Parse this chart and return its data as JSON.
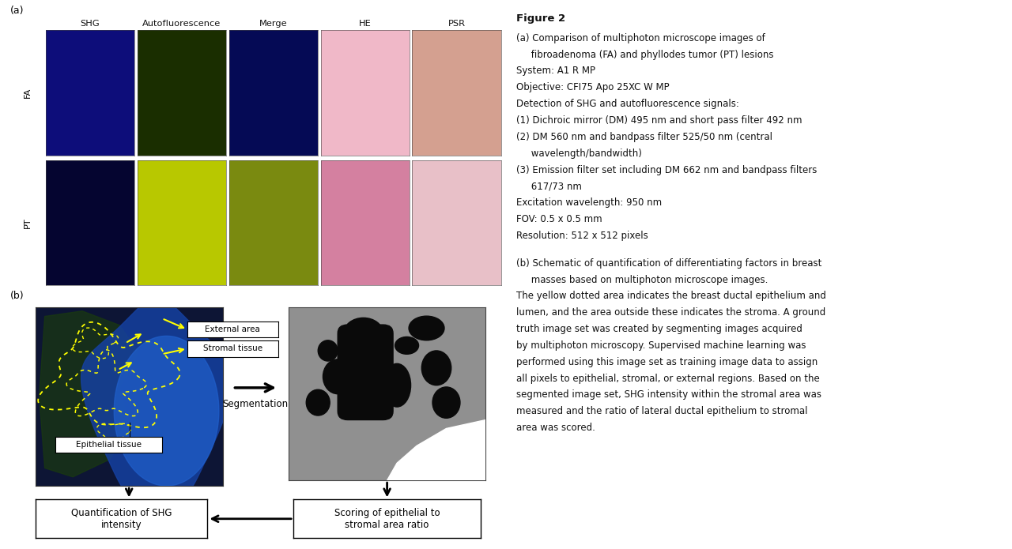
{
  "fig_bg": "#ffffff",
  "panel_a_label": "(a)",
  "panel_b_label": "(b)",
  "col_labels": [
    "SHG",
    "Autofluorescence",
    "Merge",
    "HE",
    "PSR"
  ],
  "row_labels_FA": "FA",
  "row_labels_PT": "PT",
  "image_colors": {
    "FA_SHG": "#0d0d7a",
    "FA_AF": "#1a2e00",
    "FA_Merge": "#050a55",
    "FA_HE": "#f0b8c8",
    "FA_PSR": "#d4a090",
    "PT_SHG": "#050530",
    "PT_AF": "#b8c800",
    "PT_Merge": "#7a8a10",
    "PT_HE": "#d480a0",
    "PT_PSR": "#e8c0c8"
  },
  "schematic": {
    "label_external": "External area",
    "label_stromal": "Stromal tissue",
    "label_epithelial": "Epithelial tissue",
    "label_segmentation": "Segmentation",
    "label_shg": "Quantification of SHG\nintensity",
    "label_scoring": "Scoring of epithelial to\nstromal area ratio"
  },
  "right_text": [
    {
      "text": "Figure 2",
      "bold": true,
      "fontsize": 9.5
    },
    {
      "text": "(a) Comparison of multiphoton microscope images of",
      "bold": false,
      "fontsize": 8.5,
      "indent": false
    },
    {
      "text": "     fibroadenoma (FA) and phyllodes tumor (PT) lesions",
      "bold": false,
      "fontsize": 8.5,
      "indent": true
    },
    {
      "text": "System: A1 R MP",
      "bold": false,
      "fontsize": 8.5,
      "indent": false
    },
    {
      "text": "Objective: CFI75 Apo 25XC W MP",
      "bold": false,
      "fontsize": 8.5,
      "indent": false
    },
    {
      "text": "Detection of SHG and autofluorescence signals:",
      "bold": false,
      "fontsize": 8.5,
      "indent": false
    },
    {
      "text": "(1) Dichroic mirror (DM) 495 nm and short pass filter 492 nm",
      "bold": false,
      "fontsize": 8.5,
      "indent": false
    },
    {
      "text": "(2) DM 560 nm and bandpass filter 525/50 nm (central",
      "bold": false,
      "fontsize": 8.5,
      "indent": false
    },
    {
      "text": "     wavelength/bandwidth)",
      "bold": false,
      "fontsize": 8.5,
      "indent": true
    },
    {
      "text": "(3) Emission filter set including DM 662 nm and bandpass filters",
      "bold": false,
      "fontsize": 8.5,
      "indent": false
    },
    {
      "text": "     617/73 nm",
      "bold": false,
      "fontsize": 8.5,
      "indent": true
    },
    {
      "text": "Excitation wavelength: 950 nm",
      "bold": false,
      "fontsize": 8.5,
      "indent": false
    },
    {
      "text": "FOV: 0.5 x 0.5 mm",
      "bold": false,
      "fontsize": 8.5,
      "indent": false
    },
    {
      "text": "Resolution: 512 x 512 pixels",
      "bold": false,
      "fontsize": 8.5,
      "indent": false
    },
    {
      "text": "",
      "bold": false,
      "fontsize": 8.5,
      "indent": false
    },
    {
      "text": "(b) Schematic of quantification of differentiating factors in breast",
      "bold": false,
      "fontsize": 8.5,
      "indent": false
    },
    {
      "text": "     masses based on multiphoton microscope images.",
      "bold": false,
      "fontsize": 8.5,
      "indent": true
    },
    {
      "text": "The yellow dotted area indicates the breast ductal epithelium and",
      "bold": false,
      "fontsize": 8.5,
      "indent": false
    },
    {
      "text": "lumen, and the area outside these indicates the stroma. A ground",
      "bold": false,
      "fontsize": 8.5,
      "indent": false
    },
    {
      "text": "truth image set was created by segmenting images acquired",
      "bold": false,
      "fontsize": 8.5,
      "indent": false
    },
    {
      "text": "by multiphoton microscopy. Supervised machine learning was",
      "bold": false,
      "fontsize": 8.5,
      "indent": false
    },
    {
      "text": "performed using this image set as training image data to assign",
      "bold": false,
      "fontsize": 8.5,
      "indent": false
    },
    {
      "text": "all pixels to epithelial, stromal, or external regions. Based on the",
      "bold": false,
      "fontsize": 8.5,
      "indent": false
    },
    {
      "text": "segmented image set, SHG intensity within the stromal area was",
      "bold": false,
      "fontsize": 8.5,
      "indent": false
    },
    {
      "text": "measured and the ratio of lateral ductal epithelium to stromal",
      "bold": false,
      "fontsize": 8.5,
      "indent": false
    },
    {
      "text": "area was scored.",
      "bold": false,
      "fontsize": 8.5,
      "indent": false
    }
  ]
}
